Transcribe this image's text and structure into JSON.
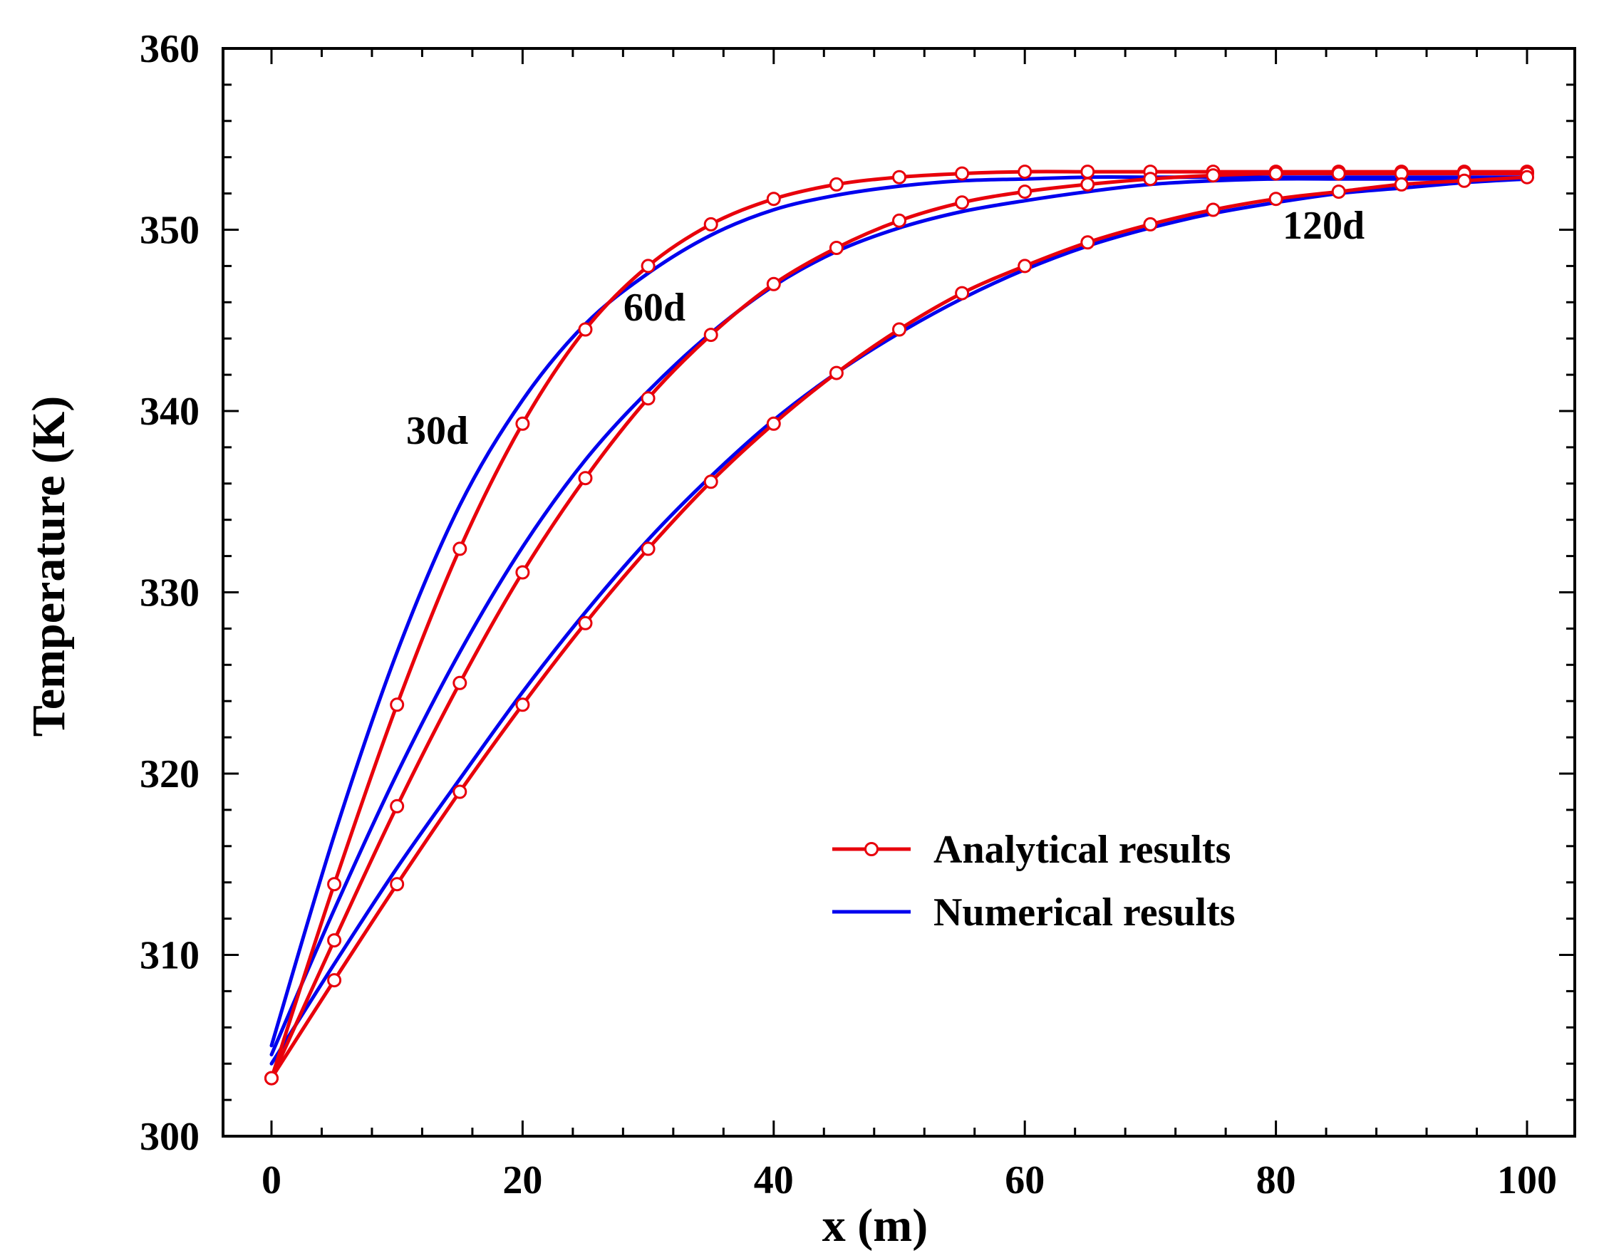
{
  "chart_data": {
    "type": "line",
    "title": "",
    "xlabel": "x (m)",
    "ylabel": "Temperature (K)",
    "xlim": [
      0,
      100
    ],
    "ylim": [
      300,
      360
    ],
    "xticks": [
      0,
      20,
      40,
      60,
      80,
      100
    ],
    "xtick_labels": [
      "0",
      "20",
      "40",
      "60",
      "80",
      "100"
    ],
    "yticks": [
      300,
      310,
      320,
      330,
      340,
      350,
      360
    ],
    "ytick_labels": [
      "300",
      "310",
      "320",
      "330",
      "340",
      "350",
      "360"
    ],
    "x_minor_step": 4,
    "y_minor_step": 2,
    "grid": false,
    "legend": {
      "position": "center-right",
      "entries": [
        {
          "label": "Analytical results",
          "color": "#e8000b",
          "marker": "circle"
        },
        {
          "label": "Numerical results",
          "color": "#0000ee",
          "marker": "none"
        }
      ]
    },
    "colors": {
      "analytical": "#e8000b",
      "numerical": "#0000ee",
      "axis": "#000000"
    },
    "annotations": [
      {
        "text": "30d",
        "x": 13.2,
        "y": 338.2
      },
      {
        "text": "60d",
        "x": 30.5,
        "y": 345.0
      },
      {
        "text": "120d",
        "x": 83.8,
        "y": 349.5
      }
    ],
    "series": [
      {
        "name": "Analytical results (30d)",
        "group": "analytical",
        "marker": "circle",
        "x": [
          0,
          5,
          10,
          15,
          20,
          25,
          30,
          35,
          40,
          45,
          50,
          55,
          60,
          65,
          70,
          75,
          80,
          85,
          90,
          95,
          100
        ],
        "y": [
          303.2,
          313.9,
          323.8,
          332.4,
          339.3,
          344.5,
          348.0,
          350.3,
          351.7,
          352.5,
          352.9,
          353.1,
          353.2,
          353.2,
          353.2,
          353.2,
          353.2,
          353.2,
          353.2,
          353.2,
          353.2
        ]
      },
      {
        "name": "Analytical results (60d)",
        "group": "analytical",
        "marker": "circle",
        "x": [
          0,
          5,
          10,
          15,
          20,
          25,
          30,
          35,
          40,
          45,
          50,
          55,
          60,
          65,
          70,
          75,
          80,
          85,
          90,
          95,
          100
        ],
        "y": [
          303.2,
          310.8,
          318.2,
          325.0,
          331.1,
          336.3,
          340.7,
          344.2,
          347.0,
          349.0,
          350.5,
          351.5,
          352.1,
          352.5,
          352.8,
          353.0,
          353.1,
          353.1,
          353.1,
          353.1,
          353.1
        ]
      },
      {
        "name": "Analytical results (120d)",
        "group": "analytical",
        "marker": "circle",
        "x": [
          0,
          5,
          10,
          15,
          20,
          25,
          30,
          35,
          40,
          45,
          50,
          55,
          60,
          65,
          70,
          75,
          80,
          85,
          90,
          95,
          100
        ],
        "y": [
          303.2,
          308.6,
          313.9,
          319.0,
          323.8,
          328.3,
          332.4,
          336.1,
          339.3,
          342.1,
          344.5,
          346.5,
          348.0,
          349.3,
          350.3,
          351.1,
          351.7,
          352.1,
          352.5,
          352.7,
          352.9
        ]
      },
      {
        "name": "Numerical results (30d)",
        "group": "numerical",
        "marker": "none",
        "x": [
          0,
          5,
          10,
          15,
          20,
          25,
          30,
          35,
          40,
          45,
          50,
          55,
          60,
          65,
          70,
          75,
          80,
          85,
          90,
          95,
          100
        ],
        "y": [
          305.0,
          316.6,
          326.7,
          334.8,
          340.6,
          344.8,
          347.6,
          349.7,
          351.1,
          351.9,
          352.4,
          352.7,
          352.8,
          352.9,
          352.9,
          352.9,
          352.9,
          352.9,
          352.9,
          352.9,
          352.9
        ]
      },
      {
        "name": "Numerical results (60d)",
        "group": "numerical",
        "marker": "none",
        "x": [
          0,
          5,
          10,
          15,
          20,
          25,
          30,
          35,
          40,
          45,
          50,
          55,
          60,
          65,
          70,
          75,
          80,
          85,
          90,
          95,
          100
        ],
        "y": [
          304.5,
          312.5,
          320.0,
          326.7,
          332.5,
          337.3,
          341.1,
          344.3,
          346.9,
          348.8,
          350.1,
          351.0,
          351.6,
          352.1,
          352.5,
          352.7,
          352.8,
          352.8,
          352.8,
          352.8,
          352.8
        ]
      },
      {
        "name": "Numerical results (120d)",
        "group": "numerical",
        "marker": "none",
        "x": [
          0,
          5,
          10,
          15,
          20,
          25,
          30,
          35,
          40,
          45,
          50,
          55,
          60,
          65,
          70,
          75,
          80,
          85,
          90,
          95,
          100
        ],
        "y": [
          304.0,
          309.5,
          314.8,
          319.7,
          324.5,
          328.9,
          332.9,
          336.4,
          339.5,
          342.1,
          344.3,
          346.2,
          347.8,
          349.1,
          350.1,
          350.9,
          351.5,
          352.0,
          352.3,
          352.6,
          352.8
        ]
      }
    ]
  }
}
